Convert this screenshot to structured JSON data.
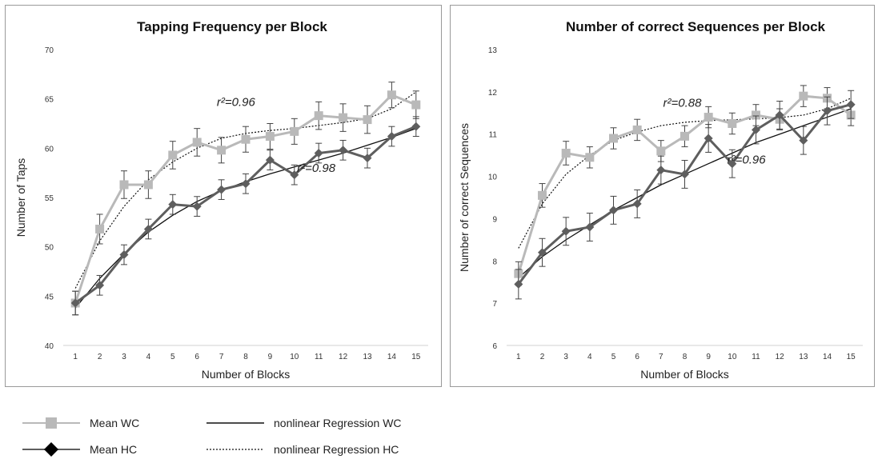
{
  "colors": {
    "wc": "#b9b9b9",
    "hc": "#5e5e5e",
    "fit": "#111111",
    "error_bar": "#444444"
  },
  "legend": {
    "mean_wc": "Mean WC",
    "mean_hc": "Mean HC",
    "reg_wc": "nonlinear Regression WC",
    "reg_hc": "nonlinear Regression HC"
  },
  "chart_data": [
    {
      "type": "line",
      "title": "Tapping Frequency per Block",
      "xlabel": "Number of Blocks",
      "ylabel": "Number of Taps",
      "x": [
        1,
        2,
        3,
        4,
        5,
        6,
        7,
        8,
        9,
        10,
        11,
        12,
        13,
        14,
        15
      ],
      "ylim": [
        40,
        70
      ],
      "yticks": [
        40,
        45,
        50,
        55,
        60,
        65,
        70
      ],
      "grid": false,
      "series": [
        {
          "name": "Mean WC",
          "marker": "square",
          "values": [
            44.3,
            51.8,
            56.3,
            56.3,
            59.3,
            60.6,
            59.8,
            60.9,
            61.2,
            61.7,
            63.3,
            63.1,
            62.9,
            65.4,
            64.4
          ],
          "error": [
            1.2,
            1.5,
            1.4,
            1.4,
            1.4,
            1.4,
            1.3,
            1.3,
            1.3,
            1.3,
            1.4,
            1.4,
            1.4,
            1.3,
            1.4
          ]
        },
        {
          "name": "Mean HC",
          "marker": "diamond",
          "values": [
            44.3,
            46.1,
            49.2,
            51.8,
            54.3,
            54.1,
            55.8,
            56.4,
            58.8,
            57.3,
            59.5,
            59.8,
            59.0,
            61.2,
            62.2
          ],
          "error": [
            1.2,
            1.0,
            1.0,
            1.0,
            1.0,
            1.0,
            1.0,
            1.0,
            1.0,
            1.0,
            1.0,
            1.0,
            1.0,
            1.0,
            1.0
          ]
        }
      ],
      "fits": [
        {
          "name": "nonlinear Regression WC",
          "style": "dotted",
          "values": [
            45.8,
            50.6,
            54.1,
            56.8,
            58.6,
            60.0,
            61.0,
            61.5,
            61.8,
            62.0,
            62.3,
            62.6,
            63.0,
            64.0,
            65.7
          ]
        },
        {
          "name": "nonlinear Regression HC",
          "style": "solid",
          "values": [
            43.8,
            46.8,
            49.3,
            51.5,
            53.2,
            54.6,
            55.7,
            56.6,
            57.4,
            58.1,
            58.8,
            59.5,
            60.3,
            61.1,
            62.0
          ]
        }
      ],
      "annotations": [
        {
          "text": "r²=0.96",
          "x": 7.6,
          "y": 64.3
        },
        {
          "text": "r²=0.98",
          "x": 10.9,
          "y": 57.6
        }
      ]
    },
    {
      "type": "line",
      "title": "Number of correct Sequences per Block",
      "xlabel": "Number of Blocks",
      "ylabel": "Number of correct Sequences",
      "x": [
        1,
        2,
        3,
        4,
        5,
        6,
        7,
        8,
        9,
        10,
        11,
        12,
        13,
        14,
        15
      ],
      "ylim": [
        6,
        13
      ],
      "yticks": [
        6,
        7,
        8,
        9,
        10,
        11,
        12,
        13
      ],
      "grid": false,
      "series": [
        {
          "name": "Mean WC",
          "marker": "square",
          "values": [
            7.7,
            9.55,
            10.55,
            10.45,
            10.9,
            11.1,
            10.6,
            10.95,
            11.4,
            11.25,
            11.45,
            11.35,
            11.9,
            11.85,
            11.45
          ],
          "error": [
            0.28,
            0.28,
            0.28,
            0.25,
            0.25,
            0.25,
            0.25,
            0.25,
            0.25,
            0.25,
            0.25,
            0.25,
            0.25,
            0.25,
            0.25
          ]
        },
        {
          "name": "Mean HC",
          "marker": "diamond",
          "values": [
            7.45,
            8.2,
            8.7,
            8.8,
            9.2,
            9.35,
            10.15,
            10.05,
            10.9,
            10.3,
            11.1,
            11.45,
            10.85,
            11.55,
            11.7
          ],
          "error": [
            0.35,
            0.33,
            0.33,
            0.33,
            0.33,
            0.33,
            0.33,
            0.33,
            0.33,
            0.33,
            0.33,
            0.33,
            0.33,
            0.33,
            0.33
          ]
        }
      ],
      "fits": [
        {
          "name": "nonlinear Regression WC",
          "style": "dotted",
          "values": [
            8.3,
            9.35,
            10.05,
            10.5,
            10.85,
            11.05,
            11.2,
            11.28,
            11.32,
            11.34,
            11.36,
            11.39,
            11.45,
            11.6,
            11.85
          ]
        },
        {
          "name": "nonlinear Regression HC",
          "style": "solid",
          "values": [
            7.6,
            8.1,
            8.5,
            8.85,
            9.2,
            9.5,
            9.8,
            10.05,
            10.3,
            10.55,
            10.8,
            11.0,
            11.2,
            11.4,
            11.6
          ]
        }
      ],
      "annotations": [
        {
          "text": "r²=0.88",
          "x": 7.9,
          "y": 11.65
        },
        {
          "text": "r²=0.96",
          "x": 10.6,
          "y": 10.3
        }
      ]
    }
  ]
}
